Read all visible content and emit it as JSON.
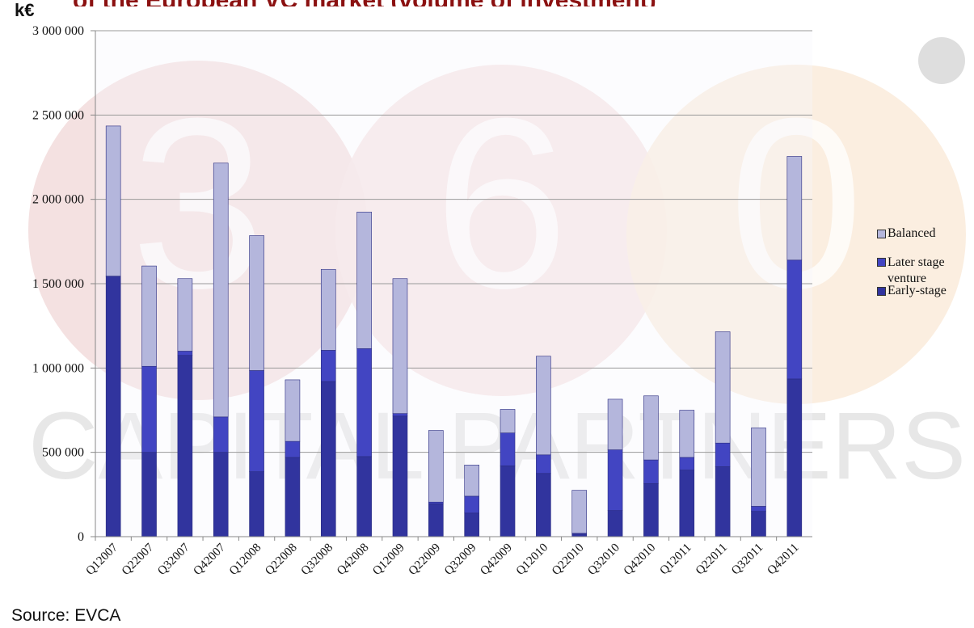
{
  "header": {
    "unit": "k€",
    "title_partial": "of the European VC market (volume of investment)"
  },
  "footer": {
    "source": "Source: EVCA"
  },
  "watermark": {
    "digits": [
      "3",
      "6",
      "0"
    ],
    "word": "CAPITAL PARTNERS"
  },
  "colors": {
    "balanced": "#b4b6dc",
    "later": "#4245c2",
    "early": "#31349e",
    "plot_bg": "#f6f6fb",
    "grid": "#9a9a9a",
    "title_dark": "#111111",
    "title_red": "#8b1111"
  },
  "chart_data": {
    "type": "bar",
    "stacked": true,
    "categories": [
      "Q12007",
      "Q22007",
      "Q32007",
      "Q42007",
      "Q12008",
      "Q22008",
      "Q32008",
      "Q42008",
      "Q12009",
      "Q22009",
      "Q32009",
      "Q42009",
      "Q12010",
      "Q22010",
      "Q32010",
      "Q42010",
      "Q12011",
      "Q22011",
      "Q32011",
      "Q42011"
    ],
    "series": [
      {
        "name": "Early-stage",
        "values": [
          1540000,
          500000,
          1075000,
          500000,
          385000,
          470000,
          920000,
          475000,
          715000,
          195000,
          140000,
          420000,
          375000,
          15000,
          155000,
          315000,
          395000,
          415000,
          150000,
          935000
        ]
      },
      {
        "name": "Later stage venture",
        "values": [
          5000,
          510000,
          25000,
          210000,
          600000,
          95000,
          185000,
          640000,
          15000,
          10000,
          100000,
          195000,
          110000,
          5000,
          360000,
          140000,
          75000,
          140000,
          30000,
          705000
        ]
      },
      {
        "name": "Balanced",
        "values": [
          890000,
          595000,
          430000,
          1505000,
          800000,
          365000,
          480000,
          810000,
          800000,
          425000,
          185000,
          140000,
          585000,
          255000,
          300000,
          380000,
          280000,
          660000,
          465000,
          615000
        ]
      }
    ],
    "ylim": [
      0,
      3000000
    ],
    "yticks": [
      0,
      500000,
      1000000,
      1500000,
      2000000,
      2500000,
      3000000
    ],
    "ytick_labels": [
      "0",
      "500 000",
      "1 000 000",
      "1 500 000",
      "2 000 000",
      "2 500 000",
      "3 000 000"
    ],
    "legend": {
      "placement": "right",
      "entries": [
        "Balanced",
        "Later stage venture",
        "Early-stage"
      ]
    },
    "grid": true
  }
}
